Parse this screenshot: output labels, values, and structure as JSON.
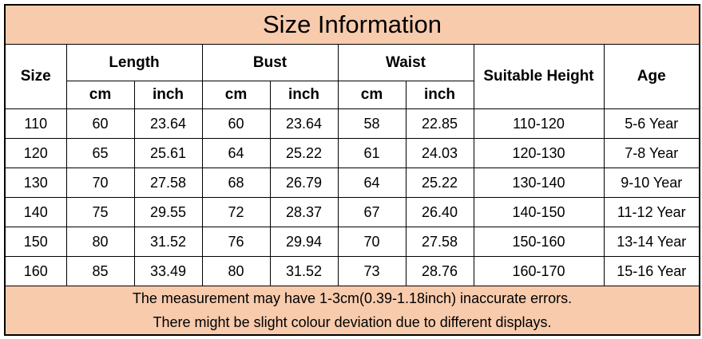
{
  "title": "Size Information",
  "header": {
    "size": "Size",
    "length": "Length",
    "bust": "Bust",
    "waist": "Waist",
    "height": "Suitable Height",
    "age": "Age",
    "units": [
      "cm",
      "inch",
      "cm",
      "inch",
      "cm",
      "inch"
    ]
  },
  "rows": [
    [
      "110",
      "60",
      "23.64",
      "60",
      "23.64",
      "58",
      "22.85",
      "110-120",
      "5-6 Year"
    ],
    [
      "120",
      "65",
      "25.61",
      "64",
      "25.22",
      "61",
      "24.03",
      "120-130",
      "7-8 Year"
    ],
    [
      "130",
      "70",
      "27.58",
      "68",
      "26.79",
      "64",
      "25.22",
      "130-140",
      "9-10 Year"
    ],
    [
      "140",
      "75",
      "29.55",
      "72",
      "28.37",
      "67",
      "26.40",
      "140-150",
      "11-12 Year"
    ],
    [
      "150",
      "80",
      "31.52",
      "76",
      "29.94",
      "70",
      "27.58",
      "150-160",
      "13-14 Year"
    ],
    [
      "160",
      "85",
      "33.49",
      "80",
      "31.52",
      "73",
      "28.76",
      "160-170",
      "15-16 Year"
    ]
  ],
  "notes": [
    "The measurement may have 1-3cm(0.39-1.18inch) inaccurate errors.",
    "There might be slight colour deviation due to different displays."
  ]
}
